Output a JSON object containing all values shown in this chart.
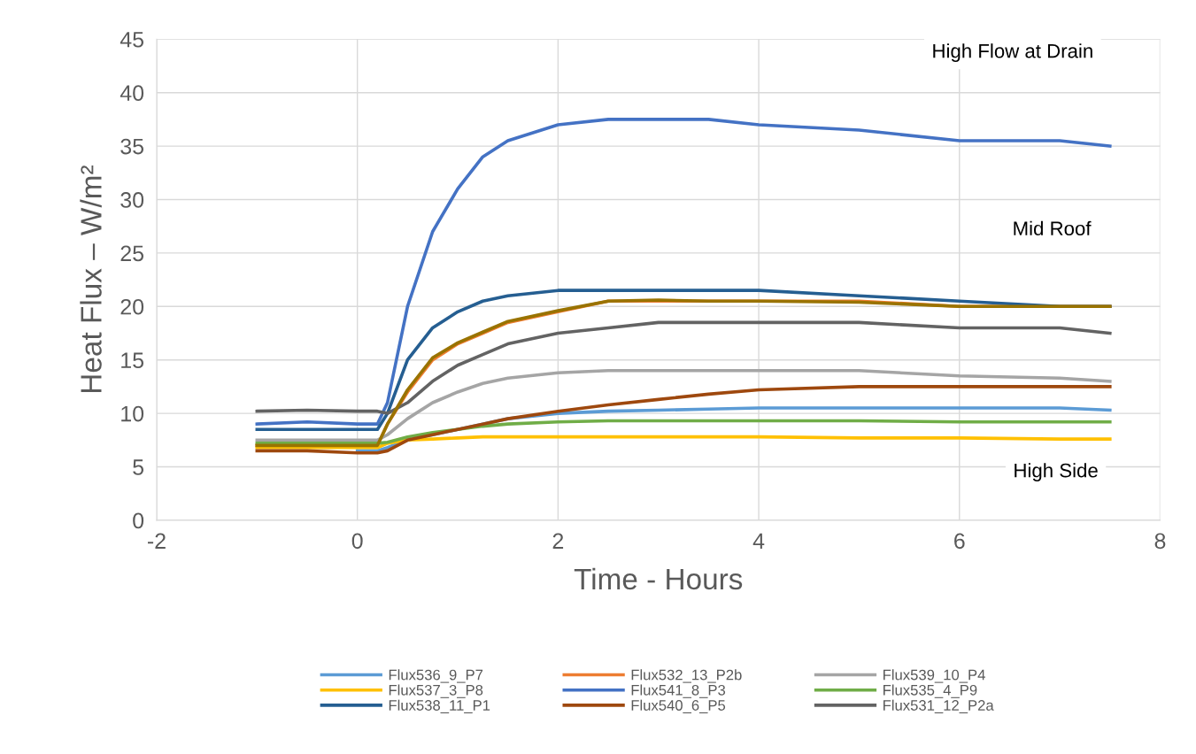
{
  "chart_data": {
    "type": "line",
    "xlabel": "Time - Hours",
    "ylabel": "Heat Flux – W/m²",
    "x": [
      -1,
      -0.5,
      0,
      0.2,
      0.3,
      0.5,
      0.75,
      1,
      1.25,
      1.5,
      2,
      2.5,
      3,
      3.5,
      4,
      5,
      6,
      7,
      7.5
    ],
    "xlim": [
      -2,
      8
    ],
    "xticks": [
      -2,
      0,
      2,
      4,
      6,
      8
    ],
    "ylim": [
      0,
      45
    ],
    "yticks": [
      0,
      5,
      10,
      15,
      20,
      25,
      30,
      35,
      40,
      45
    ],
    "grid": true,
    "legend": "bottom",
    "series": [
      {
        "name": "Flux536_9_P7",
        "color": "#5b9bd5",
        "values": [
          null,
          null,
          6.5,
          6.5,
          6.8,
          7.5,
          8,
          8.5,
          9,
          9.5,
          10,
          10.2,
          10.3,
          10.4,
          10.5,
          10.5,
          10.5,
          10.5,
          10.3
        ]
      },
      {
        "name": "Flux532_13_P2b",
        "color": "#ed7d31",
        "values": [
          7,
          7,
          7,
          7,
          9,
          12,
          15,
          16.5,
          17.5,
          18.5,
          19.5,
          20.5,
          20.5,
          20.5,
          20.5,
          20.5,
          20,
          20,
          20
        ]
      },
      {
        "name": "Flux539_10_P4",
        "color": "#a5a5a5",
        "values": [
          7.5,
          7.5,
          7.5,
          7.5,
          8,
          9.5,
          11,
          12,
          12.8,
          13.3,
          13.8,
          14,
          14,
          14,
          14,
          14,
          13.5,
          13.3,
          13
        ]
      },
      {
        "name": "Flux537_3_P8",
        "color": "#ffc000",
        "values": [
          6.8,
          6.8,
          6.8,
          6.8,
          7.2,
          7.5,
          7.6,
          7.7,
          7.8,
          7.8,
          7.8,
          7.8,
          7.8,
          7.8,
          7.8,
          7.7,
          7.7,
          7.6,
          7.6
        ]
      },
      {
        "name": "Flux541_8_P3",
        "color": "#4472c4",
        "values": [
          9,
          9.2,
          9,
          9,
          11,
          20,
          27,
          31,
          34,
          35.5,
          37,
          37.5,
          37.5,
          37.5,
          37,
          36.5,
          35.5,
          35.5,
          35
        ]
      },
      {
        "name": "Flux535_4_P9",
        "color": "#70ad47",
        "values": [
          7.2,
          7.2,
          7.2,
          7.2,
          7.3,
          7.8,
          8.2,
          8.5,
          8.8,
          9,
          9.2,
          9.3,
          9.3,
          9.3,
          9.3,
          9.3,
          9.2,
          9.2,
          9.2
        ]
      },
      {
        "name": "Flux538_11_P1",
        "color": "#255e91",
        "values": [
          8.5,
          8.5,
          8.5,
          8.5,
          10,
          15,
          18,
          19.5,
          20.5,
          21,
          21.5,
          21.5,
          21.5,
          21.5,
          21.5,
          21,
          20.5,
          20,
          20
        ]
      },
      {
        "name": "Flux540_6_P5",
        "color": "#9e480e",
        "values": [
          6.5,
          6.5,
          6.3,
          6.3,
          6.5,
          7.5,
          8,
          8.5,
          9,
          9.5,
          10.2,
          10.8,
          11.3,
          11.8,
          12.2,
          12.5,
          12.5,
          12.5,
          12.5
        ]
      },
      {
        "name": "Flux531_12_P2a",
        "color": "#636363",
        "values": [
          10.2,
          10.3,
          10.2,
          10.2,
          10,
          11,
          13,
          14.5,
          15.5,
          16.5,
          17.5,
          18,
          18.5,
          18.5,
          18.5,
          18.5,
          18,
          18,
          17.5
        ]
      },
      {
        "color": "#997300",
        "values": [
          7,
          7,
          7,
          7,
          9,
          12.2,
          15.2,
          16.6,
          17.6,
          18.6,
          19.6,
          20.5,
          20.6,
          20.5,
          20.5,
          20.4,
          20,
          20,
          20
        ]
      }
    ],
    "annotations": [
      "High Flow at Drain",
      "Mid Roof",
      "High Side"
    ]
  }
}
